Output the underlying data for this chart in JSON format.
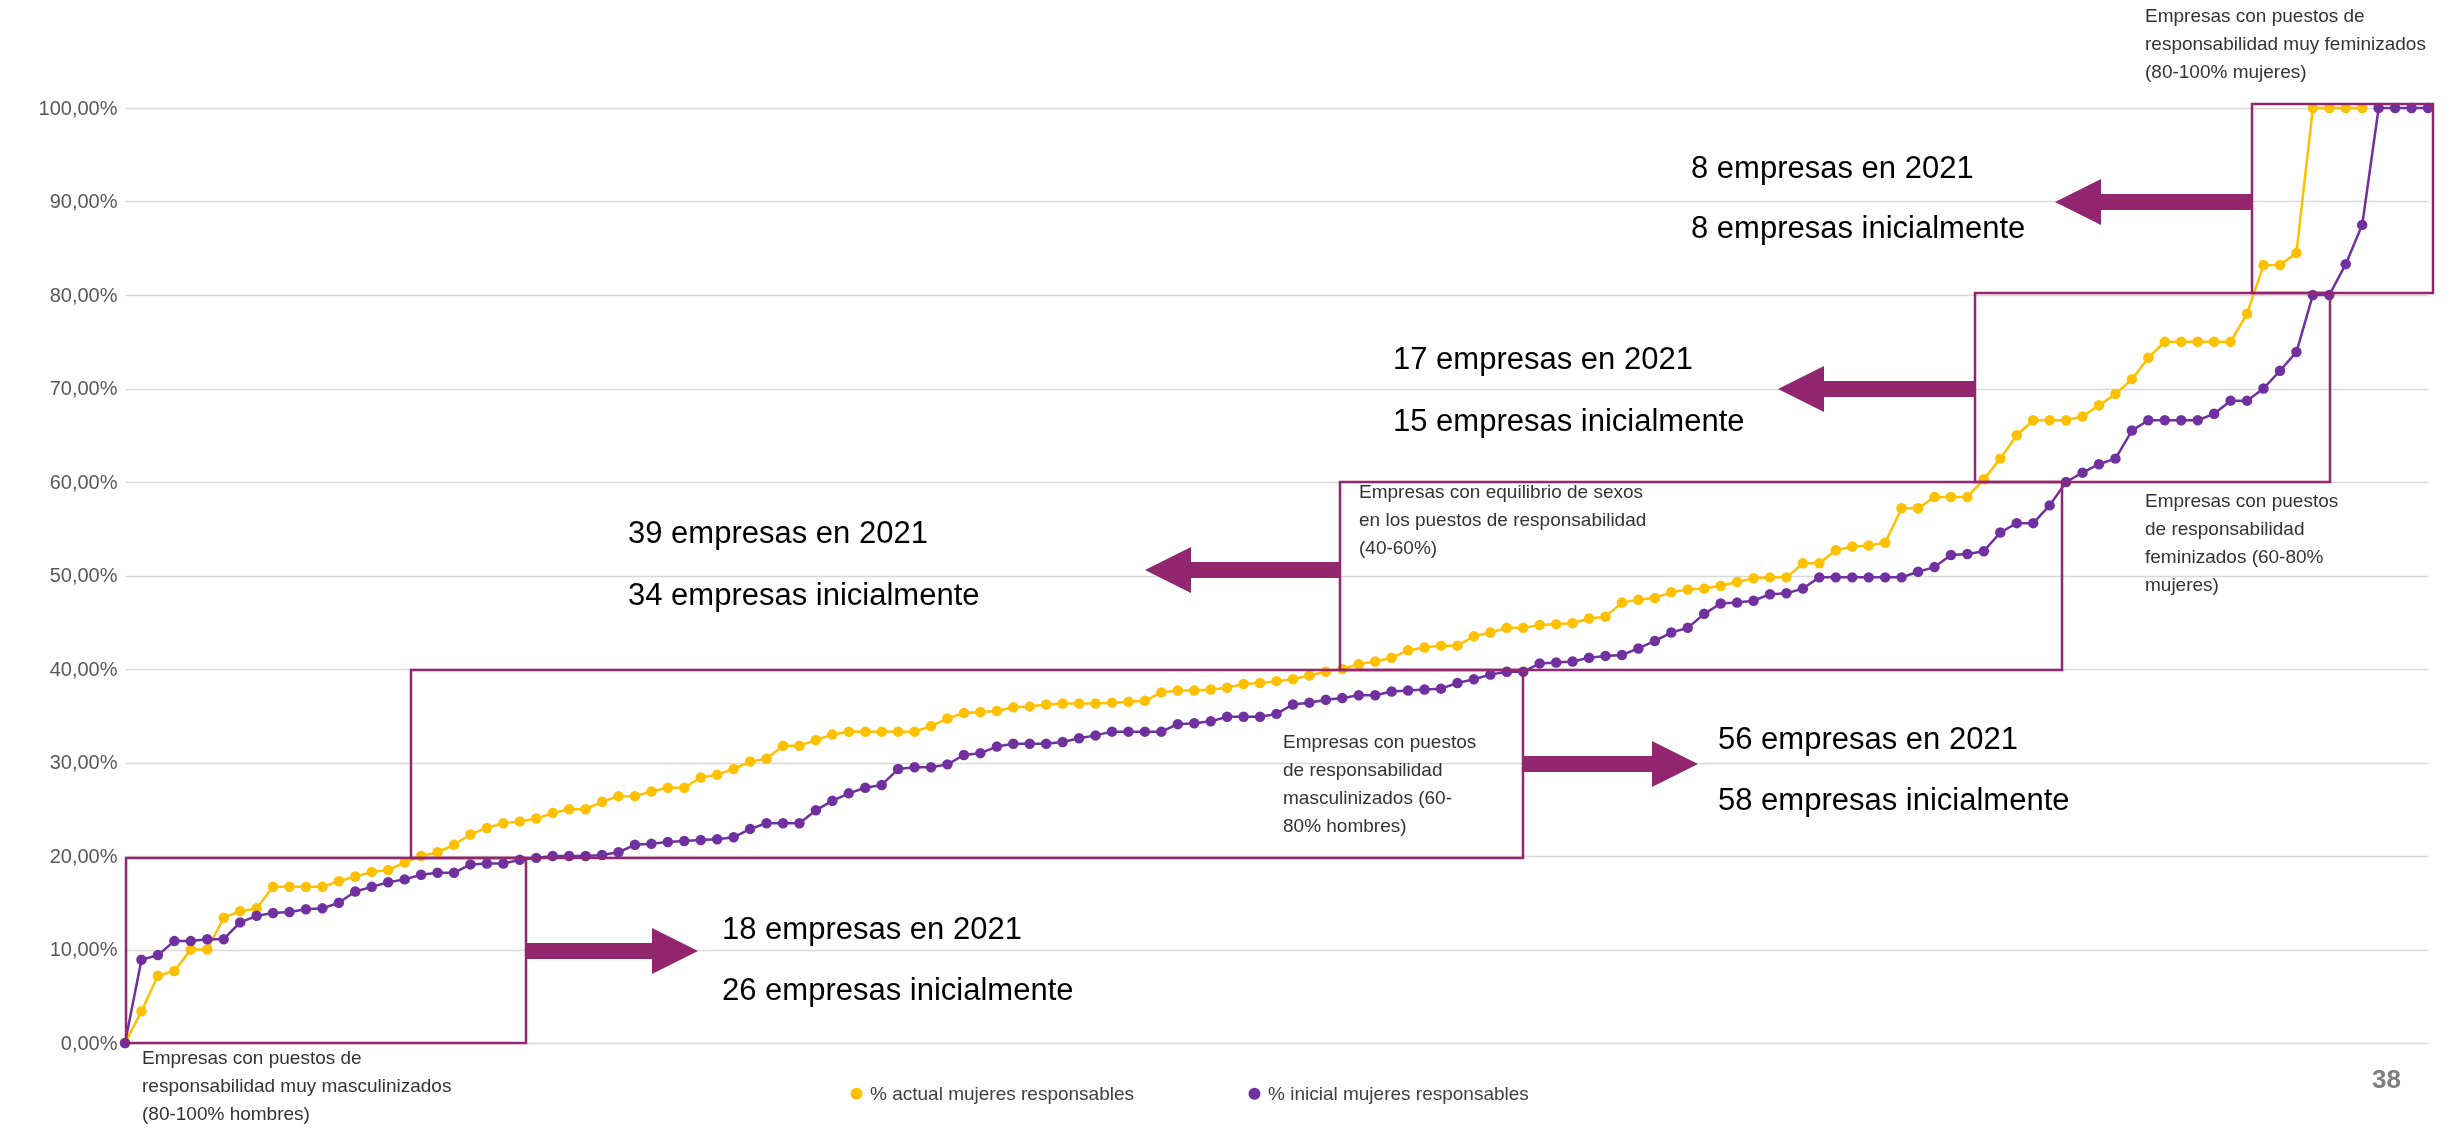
{
  "chart_data": {
    "type": "line",
    "categories": [
      null,
      null,
      null,
      null,
      null,
      null,
      null,
      null,
      null,
      null,
      null,
      null,
      null,
      null,
      null,
      null,
      null,
      null,
      null,
      null,
      null,
      null,
      null,
      null,
      null,
      null,
      null,
      null,
      null,
      null,
      null,
      null,
      null,
      null,
      null,
      null,
      null,
      null,
      null,
      null,
      null,
      null,
      null,
      null,
      null,
      null,
      null,
      null,
      null,
      null,
      null,
      null,
      null,
      null,
      null,
      null,
      null,
      null,
      null,
      null,
      null,
      null,
      null,
      null,
      null,
      null,
      null,
      null,
      null,
      null,
      null,
      null,
      null,
      null,
      null,
      null,
      null,
      null,
      null,
      null,
      null,
      null,
      null,
      null,
      null,
      null,
      null,
      null,
      null,
      null,
      null,
      null,
      null,
      null,
      null,
      null,
      null,
      null,
      null,
      null,
      null,
      null,
      null,
      null,
      null,
      null,
      null,
      null,
      null,
      null,
      null,
      null,
      null,
      null,
      null,
      null,
      null,
      null,
      null,
      null,
      null,
      null,
      null,
      null,
      null,
      null,
      null,
      null,
      null,
      null,
      null,
      null,
      null,
      null,
      null,
      null,
      null,
      null,
      null,
      null,
      null
    ],
    "series": [
      {
        "name": "% actual mujeres responsables",
        "color": "#ffc000",
        "values": [
          0,
          3.4,
          7.2,
          7.7,
          10,
          10,
          13.4,
          14.1,
          14.4,
          16.7,
          16.7,
          16.7,
          16.7,
          17.3,
          17.8,
          18.3,
          18.5,
          19.3,
          20,
          20.4,
          21.2,
          22.3,
          23,
          23.5,
          23.7,
          24,
          24.6,
          25,
          25,
          25.8,
          26.4,
          26.4,
          26.9,
          27.3,
          27.3,
          28.4,
          28.7,
          29.3,
          30.1,
          30.4,
          31.8,
          31.8,
          32.4,
          33,
          33.3,
          33.3,
          33.3,
          33.3,
          33.3,
          33.9,
          34.7,
          35.3,
          35.4,
          35.5,
          35.9,
          36,
          36.2,
          36.3,
          36.3,
          36.3,
          36.4,
          36.5,
          36.6,
          37.5,
          37.7,
          37.7,
          37.8,
          38,
          38.4,
          38.5,
          38.7,
          38.9,
          39.3,
          39.7,
          40,
          40.5,
          40.8,
          41.2,
          42,
          42.3,
          42.5,
          42.5,
          43.5,
          43.9,
          44.4,
          44.4,
          44.7,
          44.8,
          44.9,
          45.4,
          45.6,
          47.1,
          47.4,
          47.6,
          48.2,
          48.5,
          48.6,
          48.9,
          49.3,
          49.7,
          49.8,
          49.8,
          51.3,
          51.3,
          52.7,
          53.1,
          53.2,
          53.5,
          57.2,
          57.2,
          58.4,
          58.4,
          58.4,
          60.3,
          62.5,
          65,
          66.6,
          66.6,
          66.6,
          67,
          68.2,
          69.4,
          71,
          73.3,
          75,
          75,
          75,
          75,
          75,
          78,
          83.2,
          83.2,
          84.5,
          100,
          100,
          100,
          100,
          null,
          null,
          null,
          null
        ]
      },
      {
        "name": "% inicial mujeres responsables",
        "color": "#7030a0",
        "values": [
          0,
          8.9,
          9.4,
          10.9,
          10.9,
          11.1,
          11.1,
          12.9,
          13.6,
          13.9,
          14,
          14.3,
          14.4,
          15,
          16.2,
          16.7,
          17.2,
          17.5,
          18,
          18.2,
          18.2,
          19.1,
          19.2,
          19.2,
          19.6,
          19.8,
          20,
          20,
          20,
          20.1,
          20.4,
          21.2,
          21.3,
          21.5,
          21.6,
          21.7,
          21.8,
          22,
          22.9,
          23.5,
          23.5,
          23.5,
          24.9,
          25.9,
          26.7,
          27.3,
          27.6,
          29.3,
          29.5,
          29.5,
          29.8,
          30.8,
          31,
          31.7,
          32,
          32,
          32,
          32.2,
          32.6,
          32.9,
          33.3,
          33.3,
          33.3,
          33.3,
          34.1,
          34.2,
          34.4,
          34.9,
          34.9,
          34.9,
          35.2,
          36.2,
          36.4,
          36.7,
          36.9,
          37.2,
          37.2,
          37.6,
          37.7,
          37.8,
          37.9,
          38.5,
          38.9,
          39.4,
          39.7,
          39.7,
          40.6,
          40.7,
          40.8,
          41.2,
          41.4,
          41.5,
          42.2,
          43,
          43.9,
          44.4,
          45.9,
          47,
          47.1,
          47.3,
          48,
          48.1,
          48.6,
          49.8,
          49.8,
          49.8,
          49.8,
          49.8,
          49.8,
          50.4,
          50.9,
          52.2,
          52.3,
          52.6,
          54.6,
          55.6,
          55.6,
          57.5,
          60,
          61,
          61.9,
          62.5,
          65.5,
          66.6,
          66.6,
          66.6,
          66.6,
          67.3,
          68.7,
          68.7,
          70,
          71.9,
          73.9,
          80,
          80,
          83.3,
          87.5,
          100,
          100,
          100,
          100
        ]
      }
    ],
    "ylim": [
      0,
      100
    ],
    "yticks": [
      {
        "value": 0,
        "label": "0,00%"
      },
      {
        "value": 10,
        "label": "10,00%"
      },
      {
        "value": 20,
        "label": "20,00%"
      },
      {
        "value": 30,
        "label": "30,00%"
      },
      {
        "value": 40,
        "label": "40,00%"
      },
      {
        "value": 50,
        "label": "50,00%"
      },
      {
        "value": 60,
        "label": "60,00%"
      },
      {
        "value": 70,
        "label": "70,00%"
      },
      {
        "value": 80,
        "label": "80,00%"
      },
      {
        "value": 90,
        "label": "90,00%"
      },
      {
        "value": 100,
        "label": "100,00%"
      }
    ],
    "grid": "y",
    "legend": "bottom",
    "marker": "circle",
    "tick_labels": "y",
    "annotations": [
      "Empresas con puestos de\nresponsabilidad muy feminizados\n(80-100% mujeres)",
      "8 empresas en 2021",
      "8 empresas inicialmente",
      "17 empresas en 2021",
      "15 empresas inicialmente",
      "Empresas con puestos\nde responsabilidad\nfeminizados (60-80%\nmujeres)",
      "39 empresas en 2021",
      "34 empresas inicialmente",
      "Empresas con equilibrio de sexos\nen los puestos de responsabilidad\n(40-60%)",
      "56 empresas en 2021",
      "58 empresas inicialmente",
      "Empresas con puestos\nde responsabilidad\nmasculinizados (60-\n80% hombres)",
      "18 empresas en 2021",
      "26 empresas inicialmente",
      "Empresas con puestos de\nresponsabilidad muy masculinizados\n(80-100% hombres)",
      "38"
    ]
  }
}
